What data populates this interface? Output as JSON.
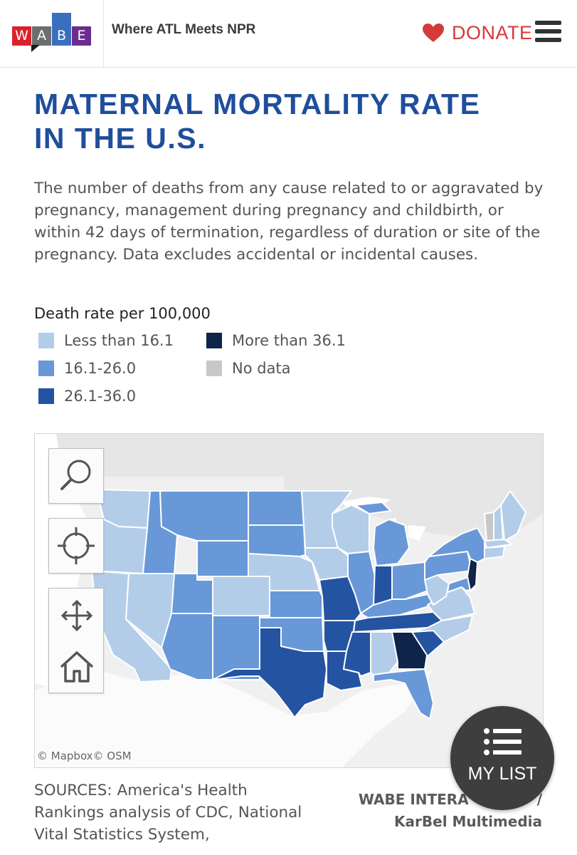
{
  "header": {
    "logo_letters": [
      "W",
      "A",
      "B",
      "E"
    ],
    "tagline": "Where ATL Meets NPR",
    "donate_label": "DONATE",
    "menu_icon": "hamburger-icon"
  },
  "article": {
    "title_line1": "MATERNAL MORTALITY RATE",
    "title_line2": "IN THE U.S.",
    "description": "The number of deaths from any cause related to or aggravated by pregnancy, management during pregnancy and childbirth, or within 42 days of termination, regardless of duration or site of the pregnancy. Data excludes accidental or incidental causes."
  },
  "legend": {
    "title": "Death rate per 100,000",
    "items": [
      {
        "label": "Less than 16.1",
        "color": "#b3cde9"
      },
      {
        "label": "16.1-26.0",
        "color": "#6898d8"
      },
      {
        "label": "26.1-36.0",
        "color": "#2453a2"
      },
      {
        "label": "More than 36.1",
        "color": "#0e2448"
      },
      {
        "label": "No data",
        "color": "#c8c8c8"
      }
    ]
  },
  "map": {
    "attribution": "© Mapbox© OSM",
    "controls": [
      "search-icon",
      "locate-icon",
      "pan-icon",
      "home-icon"
    ]
  },
  "sources": {
    "text": "SOURCES: America's Health Rankings analysis of CDC, National Vital Statistics System,"
  },
  "credits": {
    "line1": "WABE INTERA",
    "line1_tail": "/",
    "line2": "KarBel Multimedia"
  },
  "mylist": {
    "label": "MY LIST",
    "icon": "list-icon"
  }
}
